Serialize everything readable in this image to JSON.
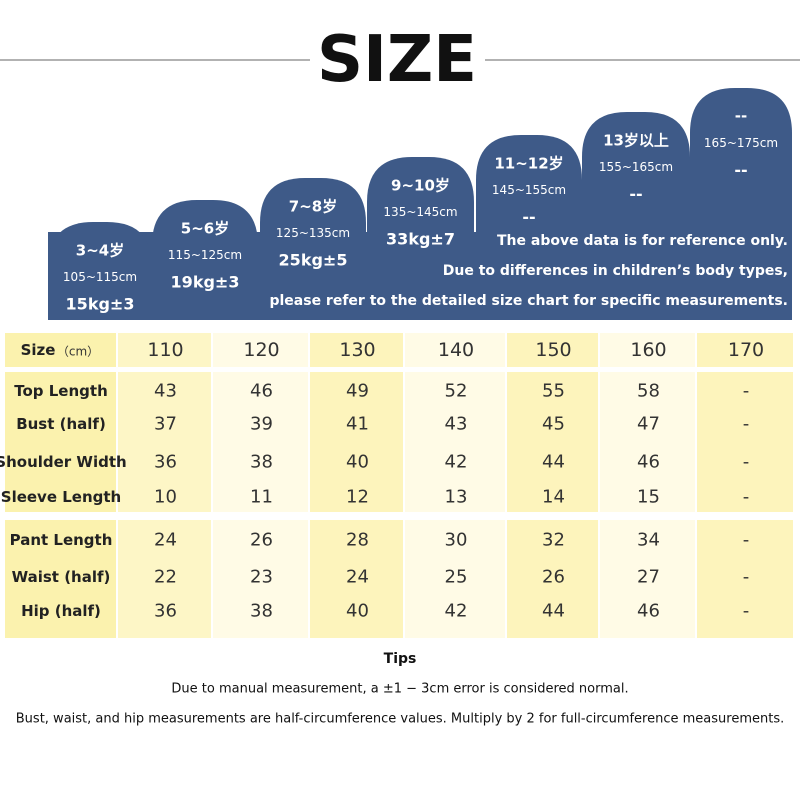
{
  "title": "SIZE",
  "tabs": [
    {
      "age": "3~4岁",
      "height": "105~115cm",
      "weight": "15kg±3"
    },
    {
      "age": "5~6岁",
      "height": "115~125cm",
      "weight": "19kg±3"
    },
    {
      "age": "7~8岁",
      "height": "125~135cm",
      "weight": "25kg±5"
    },
    {
      "age": "9~10岁",
      "height": "135~145cm",
      "weight": "33kg±7"
    },
    {
      "age": "11~12岁",
      "height": "145~155cm",
      "weight": "--"
    },
    {
      "age": "13岁以上",
      "height": "155~165cm",
      "weight": "--"
    },
    {
      "age": "--",
      "height": "165~175cm",
      "weight": "--"
    }
  ],
  "note": [
    "The above data is for reference only.",
    "Due to differences in children’s body types,",
    "please refer to the detailed size chart for specific measurements."
  ],
  "table": {
    "header": {
      "label": "Size",
      "unit": "（cm）",
      "sizes": [
        110,
        120,
        130,
        140,
        150,
        160,
        170
      ]
    },
    "groups": [
      [
        {
          "label": "Top Length",
          "values": [
            43,
            46,
            49,
            52,
            55,
            58,
            "-"
          ]
        },
        {
          "label": "Bust (half)",
          "values": [
            37,
            39,
            41,
            43,
            45,
            47,
            "-"
          ]
        },
        {
          "label": "Shoulder Width",
          "values": [
            36,
            38,
            40,
            42,
            44,
            46,
            "-"
          ]
        },
        {
          "label": "Sleeve Length",
          "values": [
            10,
            11,
            12,
            13,
            14,
            15,
            "-"
          ]
        }
      ],
      [
        {
          "label": "Pant Length",
          "values": [
            24,
            26,
            28,
            30,
            32,
            34,
            "-"
          ]
        },
        {
          "label": "Waist (half)",
          "values": [
            22,
            23,
            24,
            25,
            26,
            27,
            "-"
          ]
        },
        {
          "label": "Hip (half)",
          "values": [
            36,
            38,
            40,
            42,
            44,
            46,
            "-"
          ]
        }
      ]
    ]
  },
  "tips": {
    "title": "Tips",
    "lines": [
      "Due to manual measurement, a ±1 − 3cm error is considered normal.",
      "Bust, waist, and hip measurements are half-circumference values. Multiply by 2 for full-circumference measurements."
    ]
  }
}
